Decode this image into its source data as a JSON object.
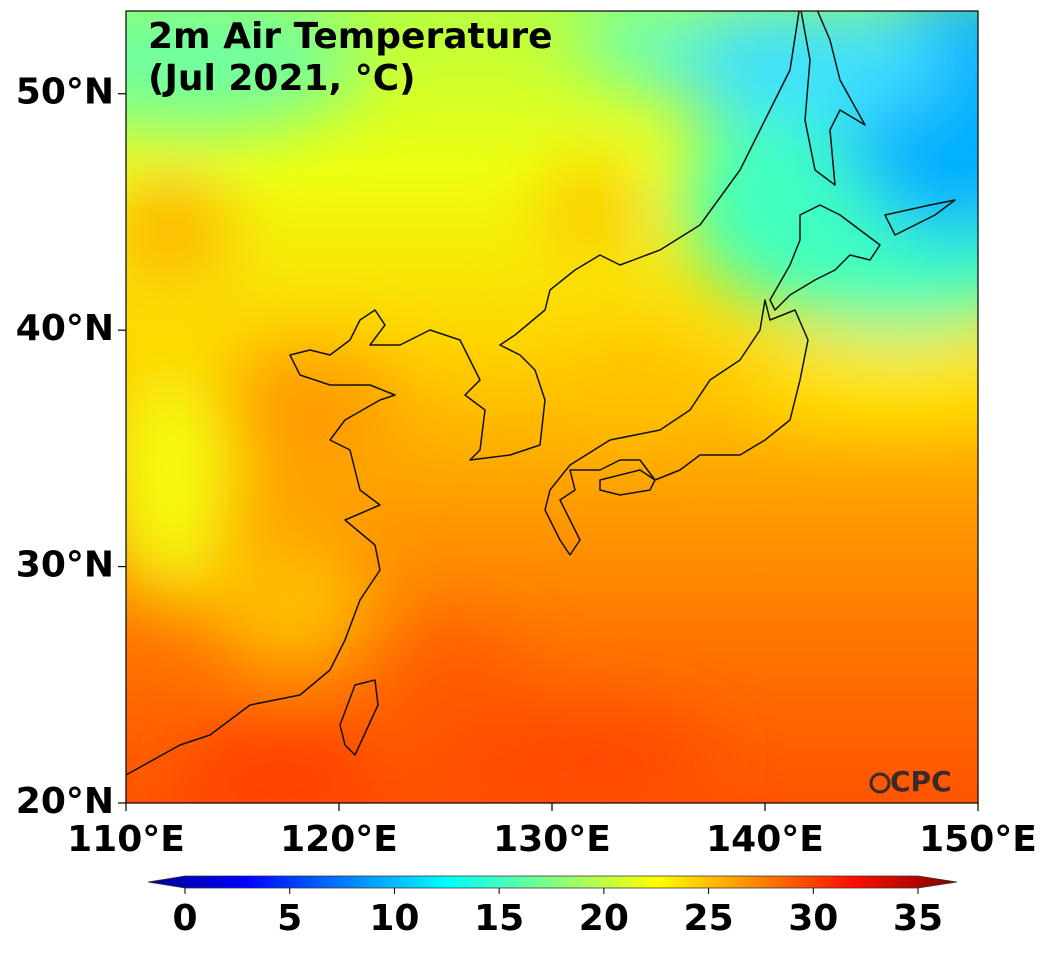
{
  "chart_data": {
    "type": "map",
    "title": [
      "2m Air Temperature",
      "(Jul 2021, °C)"
    ],
    "xlim": [
      110,
      150
    ],
    "xticks": [
      {
        "value": 110,
        "label": "110°E"
      },
      {
        "value": 120,
        "label": "120°E"
      },
      {
        "value": 130,
        "label": "130°E"
      },
      {
        "value": 140,
        "label": "140°E"
      },
      {
        "value": 150,
        "label": "150°E"
      }
    ],
    "ylim": [
      20,
      53.5
    ],
    "yticks": [
      {
        "value": 20,
        "label": "20°N"
      },
      {
        "value": 30,
        "label": "30°N"
      },
      {
        "value": 40,
        "label": "40°N"
      },
      {
        "value": 50,
        "label": "50°N"
      }
    ],
    "colorbar": {
      "lim": [
        0,
        35
      ],
      "ticks": [
        0,
        5,
        10,
        15,
        20,
        25,
        30,
        35
      ]
    },
    "logo": "CPC"
  }
}
